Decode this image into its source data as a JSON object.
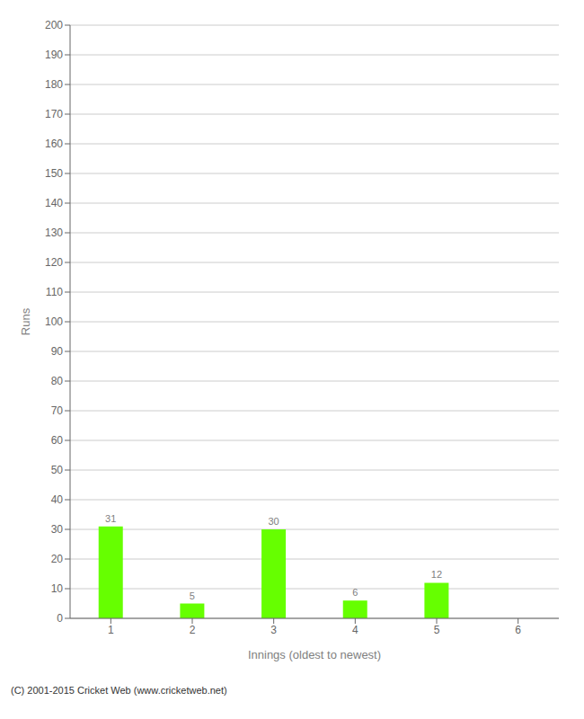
{
  "chart_data": {
    "type": "bar",
    "categories": [
      "1",
      "2",
      "3",
      "4",
      "5",
      "6"
    ],
    "values": [
      31,
      5,
      30,
      6,
      12,
      0
    ],
    "color": "#66ff00",
    "xlabel": "Innings (oldest to newest)",
    "ylabel": "Runs",
    "ylim": [
      0,
      200
    ],
    "yticks": [
      0,
      10,
      20,
      30,
      40,
      50,
      60,
      70,
      80,
      90,
      100,
      110,
      120,
      130,
      140,
      150,
      160,
      170,
      180,
      190,
      200
    ],
    "grid": true,
    "data_labels": true,
    "footer": "(C) 2001-2015 Cricket Web (www.cricketweb.net)"
  }
}
